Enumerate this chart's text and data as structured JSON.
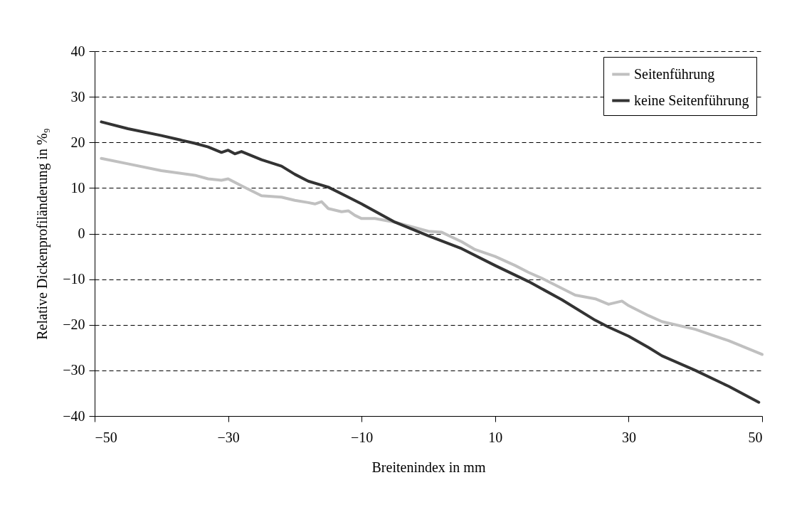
{
  "chart_data": {
    "type": "line",
    "xlabel": "Breitenindex in mm",
    "ylabel": "Relative Dickenprofiländerung in %₉",
    "xlim": [
      -50,
      50
    ],
    "xticks": [
      -50,
      -30,
      -10,
      10,
      30,
      50
    ],
    "ylim": [
      -40,
      40
    ],
    "yticks": [
      -40,
      -30,
      -20,
      -10,
      0,
      10,
      20,
      30,
      40
    ],
    "grid": "y",
    "legend": "top right",
    "line_style": "solid",
    "marker": "none",
    "series": [
      {
        "name": "Seitenführung",
        "color": "#c0c0c0",
        "x": [
          -49,
          -45,
          -40,
          -35,
          -33,
          -31,
          -30,
          -28,
          -25,
          -22,
          -20,
          -18,
          -17,
          -16,
          -15,
          -13,
          -12,
          -11,
          -10,
          -8,
          -5,
          0,
          2,
          5,
          7,
          10,
          13,
          15,
          17,
          20,
          22,
          25,
          27,
          29,
          30,
          33,
          35,
          40,
          45,
          50
        ],
        "values": [
          16.5,
          15.3,
          13.8,
          12.8,
          12,
          11.7,
          12,
          10.5,
          8.3,
          8,
          7.3,
          6.8,
          6.5,
          7,
          5.5,
          4.8,
          5,
          4,
          3.3,
          3.3,
          2.5,
          0.5,
          0.3,
          -1.8,
          -3.5,
          -5,
          -7,
          -8.5,
          -9.8,
          -12,
          -13.5,
          -14.3,
          -15.5,
          -14.8,
          -15.8,
          -18,
          -19.3,
          -21,
          -23.5,
          -26.5
        ]
      },
      {
        "name": "keine Seitenführung",
        "color": "#333333",
        "x": [
          -49,
          -45,
          -40,
          -35,
          -33,
          -31,
          -30,
          -29,
          -28,
          -25,
          -22,
          -20,
          -18,
          -15,
          -12,
          -10,
          -5,
          0,
          5,
          10,
          15,
          20,
          25,
          27,
          30,
          33,
          35,
          40,
          45,
          49.5
        ],
        "values": [
          24.5,
          23,
          21.5,
          19.8,
          19,
          17.8,
          18.3,
          17.5,
          18,
          16.2,
          14.8,
          13,
          11.5,
          10.2,
          8,
          6.5,
          2.5,
          -0.5,
          -3.3,
          -7,
          -10.5,
          -14.5,
          -19,
          -20.5,
          -22.5,
          -25,
          -26.8,
          -30,
          -33.5,
          -37
        ]
      }
    ]
  }
}
